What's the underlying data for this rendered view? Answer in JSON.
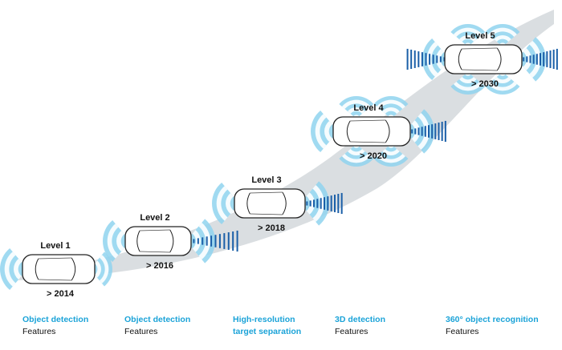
{
  "levels": [
    {
      "label": "Level 1",
      "year": "> 2014"
    },
    {
      "label": "Level 2",
      "year": "> 2016"
    },
    {
      "label": "Level 3",
      "year": "> 2018"
    },
    {
      "label": "Level 4",
      "year": "> 2020"
    },
    {
      "label": "Level 5",
      "year": "> 2030"
    }
  ],
  "captions": [
    {
      "feature": "Object detection",
      "sub": "Features"
    },
    {
      "feature": "Object detection",
      "sub": "Features"
    },
    {
      "feature": "High-resolution",
      "sub": "target separation"
    },
    {
      "feature": "3D detection",
      "sub": "Features"
    },
    {
      "feature": "360° object recognition",
      "sub": "Features"
    }
  ],
  "colors": {
    "accent": "#1ba3d8",
    "sensor": "#8fd3ef",
    "radar_beam": "#1a5fa8",
    "path": "#d4d8dc"
  }
}
